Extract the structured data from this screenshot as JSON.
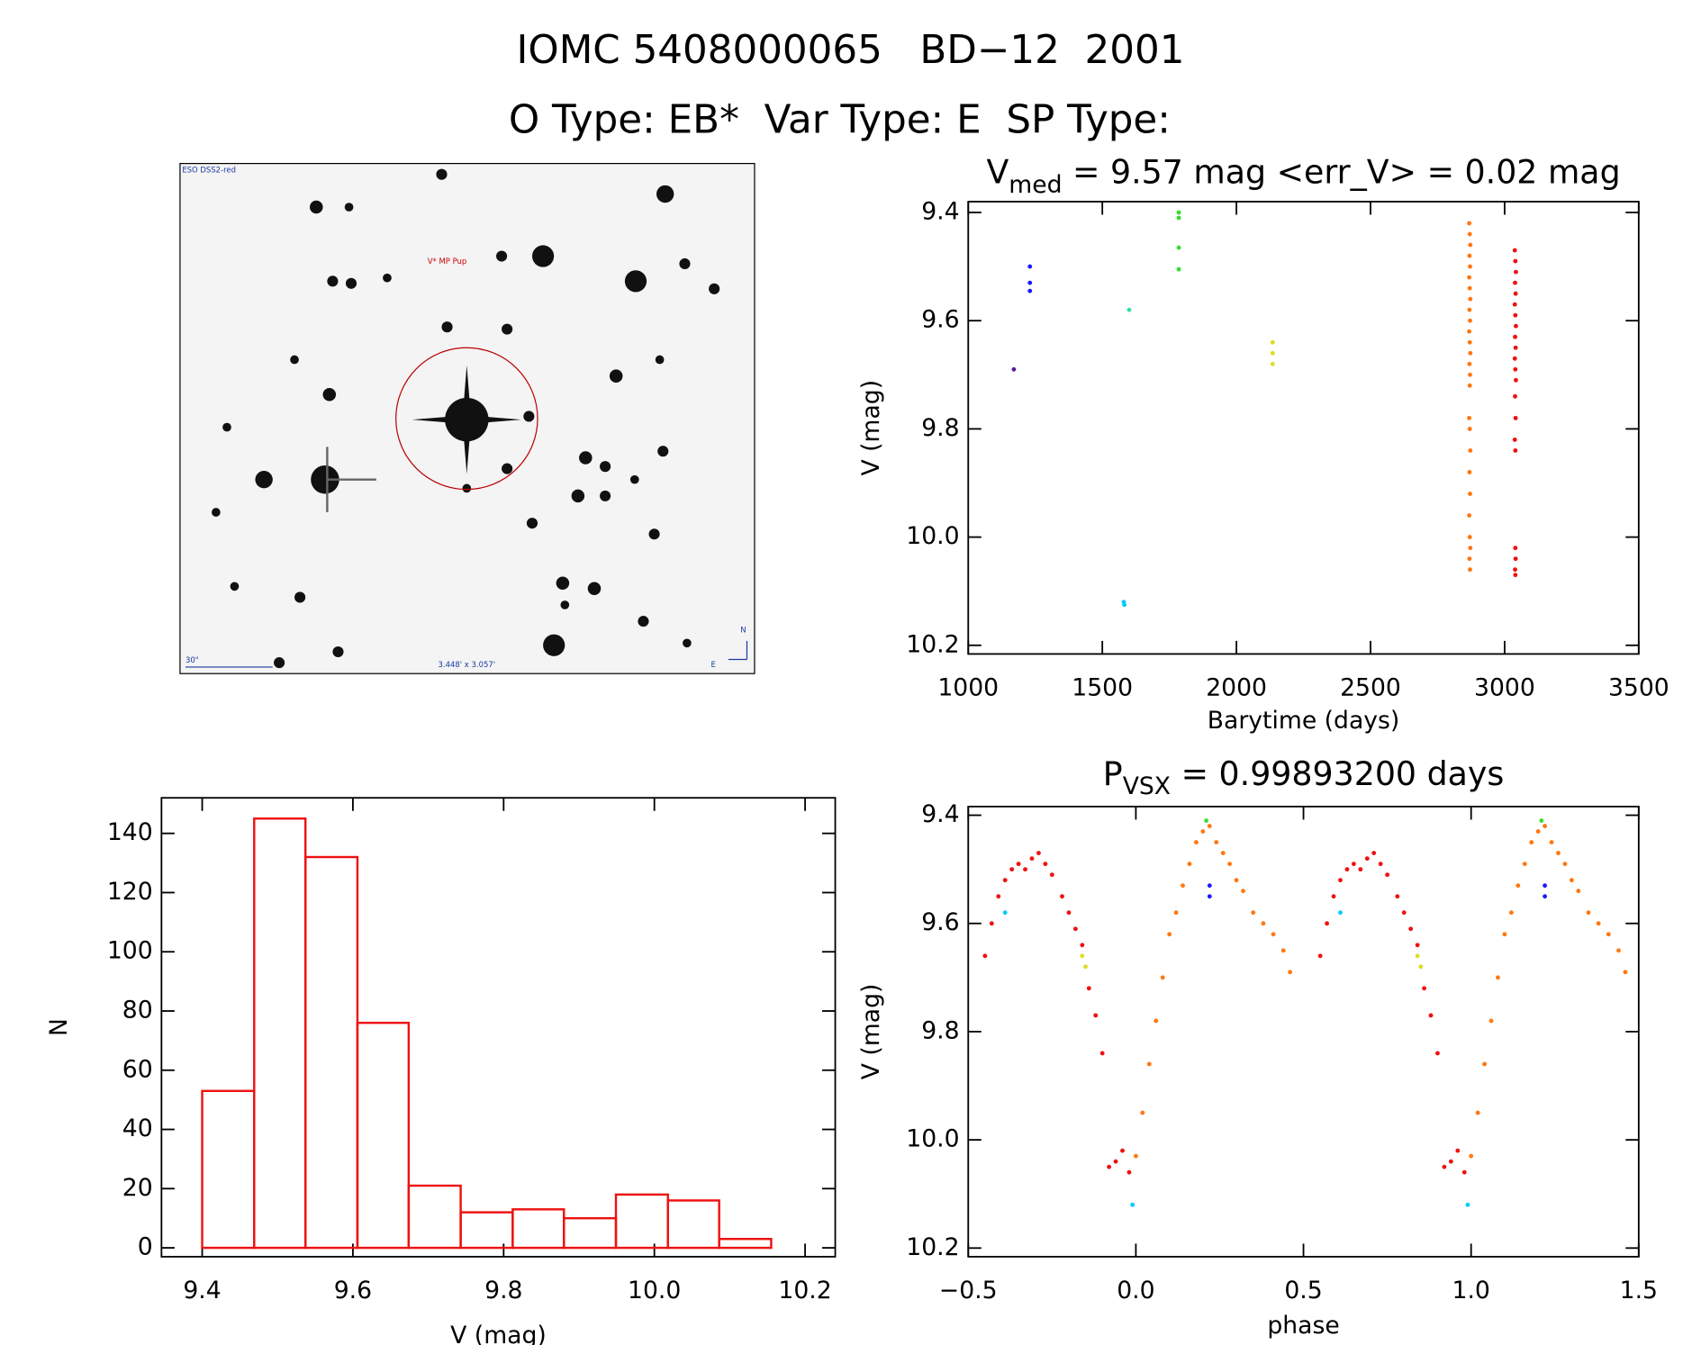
{
  "header": {
    "title": "IOMC 5408000065   BD−12  2001",
    "subtitle": "O Type: EB*  Var Type: E  SP Type:"
  },
  "image": {
    "survey": "ESO DSS2-red",
    "target": "V* MP Pup",
    "scale": "30\"",
    "size": "3.448' x 3.057'",
    "north": "N",
    "east": "E"
  },
  "chart_data": [
    {
      "type": "scatter",
      "title": {
        "main": "V",
        "sub": "med",
        "rest": " = 9.57 mag <err_V> = 0.02 mag"
      },
      "x_label": "Barytime (days)",
      "y_label": "V (mag)",
      "xlim": [
        1000,
        3500
      ],
      "ylim": [
        9.38,
        10.216
      ],
      "y_inverted": true,
      "xticks": [
        1000,
        1500,
        2000,
        2500,
        3000,
        3500
      ],
      "yticks": [
        9.4,
        9.6,
        9.8,
        {
          "value": 10.0,
          "label": "10.0"
        },
        10.2
      ],
      "series": [
        {
          "color": "#5a1a9a",
          "x": [
            1170
          ],
          "values": [
            9.69
          ]
        },
        {
          "color": "#1a1aff",
          "x": [
            1230,
            1230,
            1230
          ],
          "values": [
            9.5,
            9.53,
            9.545
          ]
        },
        {
          "color": "#00ccff",
          "x": [
            1580,
            1582
          ],
          "values": [
            10.12,
            10.125
          ]
        },
        {
          "color": "#33ddaa",
          "x": [
            1600
          ],
          "values": [
            9.58
          ]
        },
        {
          "color": "#33dd33",
          "x": [
            1785,
            1785,
            1785,
            1785
          ],
          "values": [
            9.4,
            9.41,
            9.465,
            9.505
          ]
        },
        {
          "color": "#dddd22",
          "x": [
            2135,
            2135,
            2135
          ],
          "values": [
            9.64,
            9.66,
            9.68
          ]
        },
        {
          "color": "#ff7711",
          "x": [
            2868,
            2870,
            2872,
            2869,
            2871,
            2868,
            2870,
            2872,
            2869,
            2871,
            2868,
            2870,
            2872,
            2869,
            2871,
            2870,
            2868,
            2870,
            2872,
            2869,
            2871,
            2868,
            2870,
            2872,
            2869,
            2871
          ],
          "values": [
            9.42,
            9.44,
            9.46,
            9.48,
            9.5,
            9.52,
            9.54,
            9.56,
            9.58,
            9.6,
            9.62,
            9.64,
            9.66,
            9.68,
            9.7,
            9.72,
            9.78,
            9.8,
            9.84,
            9.88,
            9.92,
            9.96,
            10.0,
            10.02,
            10.04,
            10.06
          ]
        },
        {
          "color": "#ee1111",
          "x": [
            3038,
            3040,
            3042,
            3039,
            3041,
            3038,
            3040,
            3042,
            3039,
            3041,
            3038,
            3040,
            3042,
            3039,
            3041,
            3038,
            3040,
            3040,
            3041,
            3039,
            3040
          ],
          "values": [
            9.47,
            9.49,
            9.51,
            9.53,
            9.55,
            9.57,
            9.59,
            9.61,
            9.63,
            9.65,
            9.67,
            9.69,
            9.71,
            9.74,
            9.78,
            9.82,
            9.84,
            10.02,
            10.04,
            10.06,
            10.07
          ]
        }
      ]
    },
    {
      "type": "histogram",
      "x_label": "V (mag)",
      "y_label": "N",
      "xlim": [
        9.346,
        10.24
      ],
      "ylim": [
        -3,
        152
      ],
      "xticks": [
        9.4,
        9.6,
        9.8,
        {
          "value": 10.0,
          "label": "10.0"
        },
        10.2
      ],
      "yticks": [
        0,
        20,
        40,
        60,
        80,
        100,
        120,
        140
      ],
      "color": "#ee1111",
      "bins": [
        9.4,
        9.469,
        9.537,
        9.606,
        9.674,
        9.743,
        9.812,
        9.88,
        9.949,
        10.018,
        10.086,
        10.155
      ],
      "values": [
        53,
        145,
        132,
        76,
        21,
        12,
        13,
        10,
        18,
        16,
        3
      ]
    },
    {
      "type": "scatter",
      "title": {
        "main": "P",
        "sub": "VSX",
        "rest": " = 0.99893200 days"
      },
      "x_label": "phase",
      "y_label": "V (mag)",
      "xlim": [
        -0.5,
        1.5
      ],
      "ylim": [
        9.384,
        10.216
      ],
      "y_inverted": true,
      "xticks": [
        {
          "value": -0.5,
          "label": "−0.5"
        },
        {
          "value": 0,
          "label": "0.0"
        },
        0.5,
        {
          "value": 1,
          "label": "1.0"
        },
        1.5
      ],
      "yticks": [
        9.4,
        9.6,
        9.8,
        {
          "value": 10.0,
          "label": "10.0"
        },
        10.2
      ],
      "series": [
        {
          "color": "#ee1111",
          "x": [
            -0.45,
            -0.43,
            -0.41,
            -0.39,
            -0.37,
            -0.35,
            -0.33,
            -0.31,
            -0.29,
            -0.27,
            -0.25,
            -0.22,
            -0.2,
            -0.18,
            -0.16,
            -0.14,
            -0.12,
            -0.1,
            -0.08,
            -0.06,
            -0.04,
            -0.02,
            0.55,
            0.57,
            0.59,
            0.61,
            0.63,
            0.65,
            0.67,
            0.69,
            0.71,
            0.73,
            0.75,
            0.78,
            0.8,
            0.82,
            0.84,
            0.86,
            0.88,
            0.9,
            0.92,
            0.94,
            0.96,
            0.98
          ],
          "values": [
            9.66,
            9.6,
            9.55,
            9.52,
            9.5,
            9.49,
            9.5,
            9.48,
            9.47,
            9.49,
            9.51,
            9.55,
            9.58,
            9.61,
            9.64,
            9.72,
            9.77,
            9.84,
            10.05,
            10.04,
            10.02,
            10.06,
            9.66,
            9.6,
            9.55,
            9.52,
            9.5,
            9.49,
            9.5,
            9.48,
            9.47,
            9.49,
            9.51,
            9.55,
            9.58,
            9.61,
            9.64,
            9.72,
            9.77,
            9.84,
            10.05,
            10.04,
            10.02,
            10.06
          ]
        },
        {
          "color": "#ff7711",
          "x": [
            0,
            0.02,
            0.04,
            0.06,
            0.08,
            0.1,
            0.12,
            0.14,
            0.16,
            0.18,
            0.2,
            0.22,
            0.24,
            0.26,
            0.28,
            0.3,
            0.32,
            0.35,
            0.38,
            0.41,
            0.44,
            0.46,
            1,
            1.02,
            1.04,
            1.06,
            1.08,
            1.1,
            1.12,
            1.14,
            1.16,
            1.18,
            1.2,
            1.22,
            1.24,
            1.26,
            1.28,
            1.3,
            1.32,
            1.35,
            1.38,
            1.41,
            1.44,
            1.46
          ],
          "values": [
            10.03,
            9.95,
            9.86,
            9.78,
            9.7,
            9.62,
            9.58,
            9.53,
            9.49,
            9.45,
            9.43,
            9.42,
            9.45,
            9.47,
            9.49,
            9.52,
            9.54,
            9.58,
            9.6,
            9.62,
            9.65,
            9.69,
            10.03,
            9.95,
            9.86,
            9.78,
            9.7,
            9.62,
            9.58,
            9.53,
            9.49,
            9.45,
            9.43,
            9.42,
            9.45,
            9.47,
            9.49,
            9.52,
            9.54,
            9.58,
            9.6,
            9.62,
            9.65,
            9.69
          ]
        },
        {
          "color": "#00ccff",
          "x": [
            -0.39,
            -0.01,
            0.61,
            0.99
          ],
          "values": [
            9.58,
            10.12,
            9.58,
            10.12
          ]
        },
        {
          "color": "#33dd33",
          "x": [
            0.21,
            1.21
          ],
          "values": [
            9.41,
            9.41
          ]
        },
        {
          "color": "#1a1aff",
          "x": [
            0.22,
            0.22,
            1.22,
            1.22
          ],
          "values": [
            9.53,
            9.55,
            9.53,
            9.55
          ]
        },
        {
          "color": "#dddd22",
          "x": [
            -0.16,
            -0.15,
            0.84,
            0.85
          ],
          "values": [
            9.66,
            9.68,
            9.66,
            9.68
          ]
        }
      ]
    }
  ]
}
